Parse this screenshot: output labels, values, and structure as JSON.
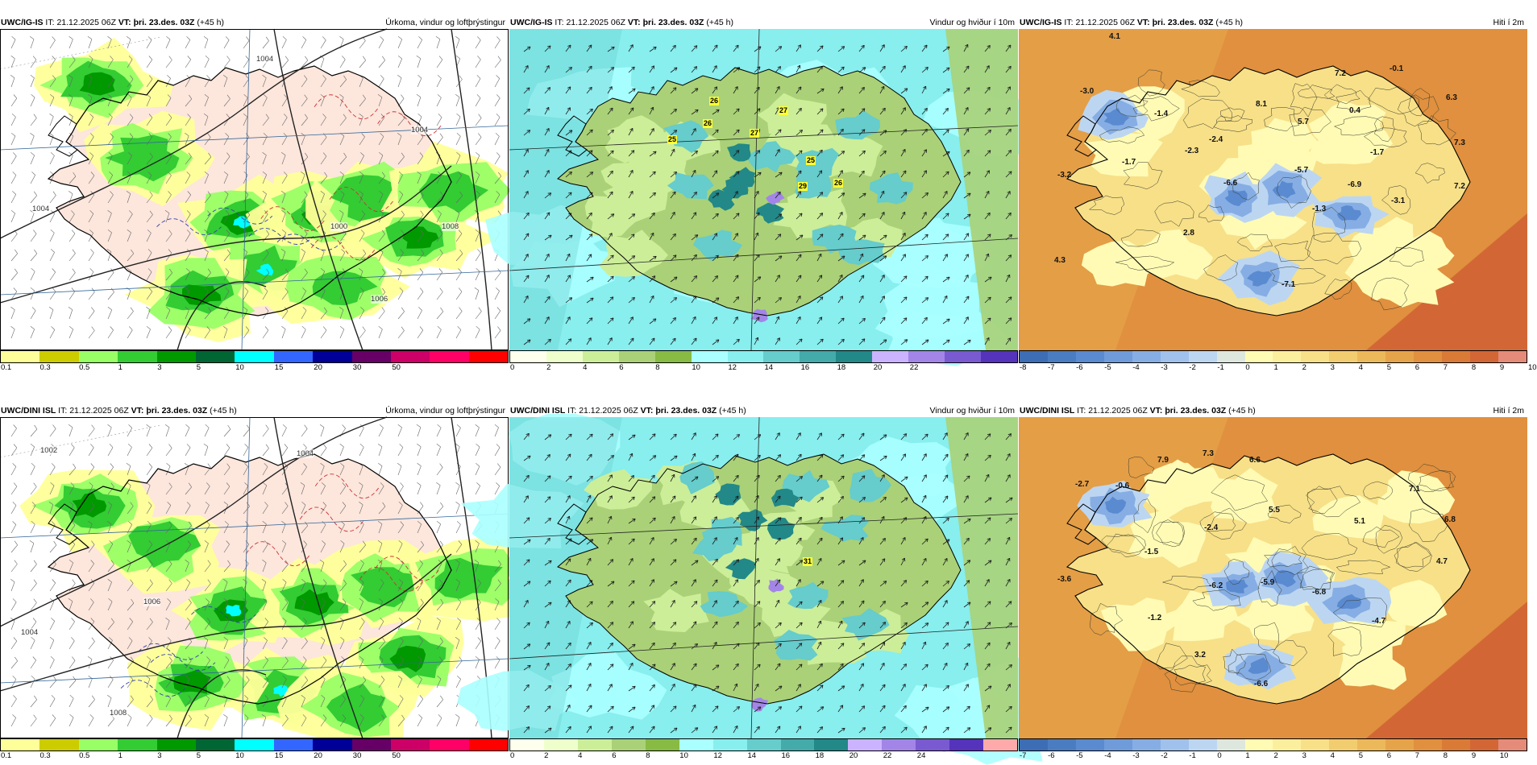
{
  "panels": [
    {
      "id": "r1c1",
      "model": "UWC/IG-IS",
      "it_label": "IT:",
      "it_value": "21.12.2025 06Z",
      "vt_label": "VT:",
      "vt_value": "þri. 23.des. 03Z",
      "lead": "(+45 h)",
      "parameter": "Úrkoma, vindur og loftþrýstingur",
      "kind": "precip",
      "colorbar": {
        "colors": [
          "#ffff99",
          "#cccc00",
          "#99ff66",
          "#33cc33",
          "#009900",
          "#006633",
          "#00ffff",
          "#3366ff",
          "#000099",
          "#660066",
          "#cc0066",
          "#ff0066",
          "#ff0000"
        ],
        "ticks": [
          "0.1",
          "0.3",
          "0.5",
          "1",
          "3",
          "5",
          "10",
          "15",
          "20",
          "30",
          "50"
        ]
      },
      "isobars": [
        "1004",
        "1004",
        "1000",
        "1008",
        "1004",
        "1006"
      ],
      "labels": []
    },
    {
      "id": "r1c2",
      "model": "UWC/IG-IS",
      "it_label": "IT:",
      "it_value": "21.12.2025 06Z",
      "vt_label": "VT:",
      "vt_value": "þri. 23.des. 03Z",
      "lead": "(+45 h)",
      "parameter": "Vindur og hviður í 10m",
      "kind": "wind",
      "colorbar": {
        "colors": [
          "#ffffee",
          "#eeffcc",
          "#ccee99",
          "#aad177",
          "#88bb44",
          "#aaffff",
          "#88eeee",
          "#66cccc",
          "#44aaaa",
          "#228888",
          "#ccb3ff",
          "#a385e8",
          "#7a5ad1",
          "#5533bb"
        ],
        "ticks": [
          "0",
          "2",
          "4",
          "6",
          "8",
          "10",
          "12",
          "14",
          "16",
          "18",
          "20",
          "22"
        ]
      },
      "gusts": [
        "26",
        "27",
        "26",
        "25",
        "27",
        "25",
        "29",
        "26"
      ],
      "labels": []
    },
    {
      "id": "r1c3",
      "model": "UWC/IG-IS",
      "it_label": "IT:",
      "it_value": "21.12.2025 06Z",
      "vt_label": "VT:",
      "vt_value": "þri. 23.des. 03Z",
      "lead": "(+45 h)",
      "parameter": "Hiti í 2m",
      "kind": "temp",
      "colorbar": {
        "colors": [
          "#3d6db5",
          "#4a7cc2",
          "#5a8ad0",
          "#6f9bdb",
          "#86aee4",
          "#a0c1ec",
          "#bcd6f2",
          "#dde7dd",
          "#fffbb5",
          "#fbef9e",
          "#f7e088",
          "#f2cd70",
          "#ecb95a",
          "#e6a44a",
          "#e0903e",
          "#d97b36",
          "#d26735",
          "#e58b7a"
        ],
        "ticks": [
          "-8",
          "-7",
          "-6",
          "-5",
          "-4",
          "-3",
          "-2",
          "-1",
          "0",
          "1",
          "2",
          "3",
          "4",
          "5",
          "6",
          "7",
          "8",
          "9",
          "10"
        ]
      },
      "labels": [
        "4.1",
        "-0.1",
        "7.2",
        "-3.0",
        "6.3",
        "-1.4",
        "8.1",
        "0.4",
        "5.7",
        "-2.4",
        "7.3",
        "-1.7",
        "-2.3",
        "-1.7",
        "-3.2",
        "-5.7",
        "-6.6",
        "-6.9",
        "7.2",
        "-3.1",
        "-1.3",
        "2.8",
        "4.3",
        "-7.1"
      ]
    },
    {
      "id": "r2c1",
      "model": "UWC/DINI ISL",
      "it_label": "IT:",
      "it_value": "21.12.2025 06Z",
      "vt_label": "VT:",
      "vt_value": "þri. 23.des. 03Z",
      "lead": "(+45 h)",
      "parameter": "Úrkoma, vindur og loftþrýstingur",
      "kind": "precip",
      "colorbar": {
        "colors": [
          "#ffff99",
          "#cccc00",
          "#99ff66",
          "#33cc33",
          "#009900",
          "#006633",
          "#00ffff",
          "#3366ff",
          "#000099",
          "#660066",
          "#cc0066",
          "#ff0066",
          "#ff0000"
        ],
        "ticks": [
          "0.1",
          "0.3",
          "0.5",
          "1",
          "3",
          "5",
          "10",
          "15",
          "20",
          "30",
          "50"
        ]
      },
      "isobars": [
        "1004",
        "1002",
        "1004",
        "1006",
        "1008"
      ],
      "labels": []
    },
    {
      "id": "r2c2",
      "model": "UWC/DINI ISL",
      "it_label": "IT:",
      "it_value": "21.12.2025 06Z",
      "vt_label": "VT:",
      "vt_value": "þri. 23.des. 03Z",
      "lead": "(+45 h)",
      "parameter": "Vindur og hviður í 10m",
      "kind": "wind",
      "colorbar": {
        "colors": [
          "#ffffee",
          "#eeffcc",
          "#ccee99",
          "#aad177",
          "#88bb44",
          "#aaffff",
          "#88eeee",
          "#66cccc",
          "#44aaaa",
          "#228888",
          "#ccb3ff",
          "#a385e8",
          "#7a5ad1",
          "#5533bb",
          "#ffaaaa"
        ],
        "ticks": [
          "0",
          "2",
          "4",
          "6",
          "8",
          "10",
          "12",
          "14",
          "16",
          "18",
          "20",
          "22",
          "24"
        ]
      },
      "gusts": [
        "31"
      ],
      "labels": []
    },
    {
      "id": "r2c3",
      "model": "UWC/DINI ISL",
      "it_label": "IT:",
      "it_value": "21.12.2025 06Z",
      "vt_label": "VT:",
      "vt_value": "þri. 23.des. 03Z",
      "lead": "(+45 h)",
      "parameter": "Hiti í 2m",
      "kind": "temp",
      "colorbar": {
        "colors": [
          "#3d6db5",
          "#4a7cc2",
          "#5a8ad0",
          "#6f9bdb",
          "#86aee4",
          "#a0c1ec",
          "#bcd6f2",
          "#dde7dd",
          "#fffbb5",
          "#fbef9e",
          "#f7e088",
          "#f2cd70",
          "#ecb95a",
          "#e6a44a",
          "#e0903e",
          "#d97b36",
          "#d26735",
          "#e58b7a"
        ],
        "ticks": [
          "-7",
          "-6",
          "-5",
          "-4",
          "-3",
          "-2",
          "-1",
          "0",
          "1",
          "2",
          "3",
          "4",
          "5",
          "6",
          "7",
          "8",
          "9",
          "10"
        ]
      },
      "labels": [
        "7.9",
        "7.3",
        "6.6",
        "-2.7",
        "-0.6",
        "7.1",
        "5.5",
        "-2.4",
        "5.1",
        "6.8",
        "-1.5",
        "4.7",
        "-3.6",
        "-6.2",
        "-5.9",
        "-6.8",
        "-1.2",
        "-4.7",
        "3.2",
        "-6.6"
      ]
    }
  ]
}
